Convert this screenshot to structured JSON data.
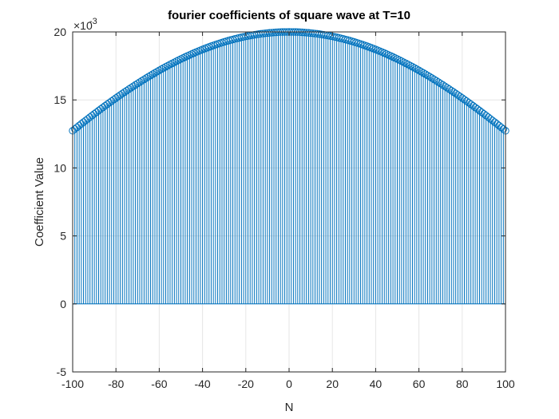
{
  "chart_data": {
    "type": "stem",
    "title": "fourier coefficients of square wave at T=10",
    "xlabel": "N",
    "ylabel": "Coefficient Value",
    "xlim": [
      -100,
      100
    ],
    "ylim": [
      -0.005,
      0.02
    ],
    "x_ticks": [
      -100,
      -80,
      -60,
      -40,
      -20,
      0,
      20,
      40,
      60,
      80,
      100
    ],
    "y_ticks": [
      -5,
      0,
      5,
      10,
      15,
      20
    ],
    "y_exponent_base": "×10",
    "y_exponent_power": "-3",
    "grid": true,
    "box": true,
    "series": [
      {
        "marker": "circle",
        "baseline": 0,
        "n_start": -100,
        "n_end": 100,
        "n_step": 1,
        "amplitude": 0.02,
        "period": 200,
        "formula": "sinc"
      }
    ]
  },
  "colors": {
    "series": "#0072BD",
    "axes": "#262626",
    "grid": "#e6e6e6",
    "background": "#ffffff"
  }
}
